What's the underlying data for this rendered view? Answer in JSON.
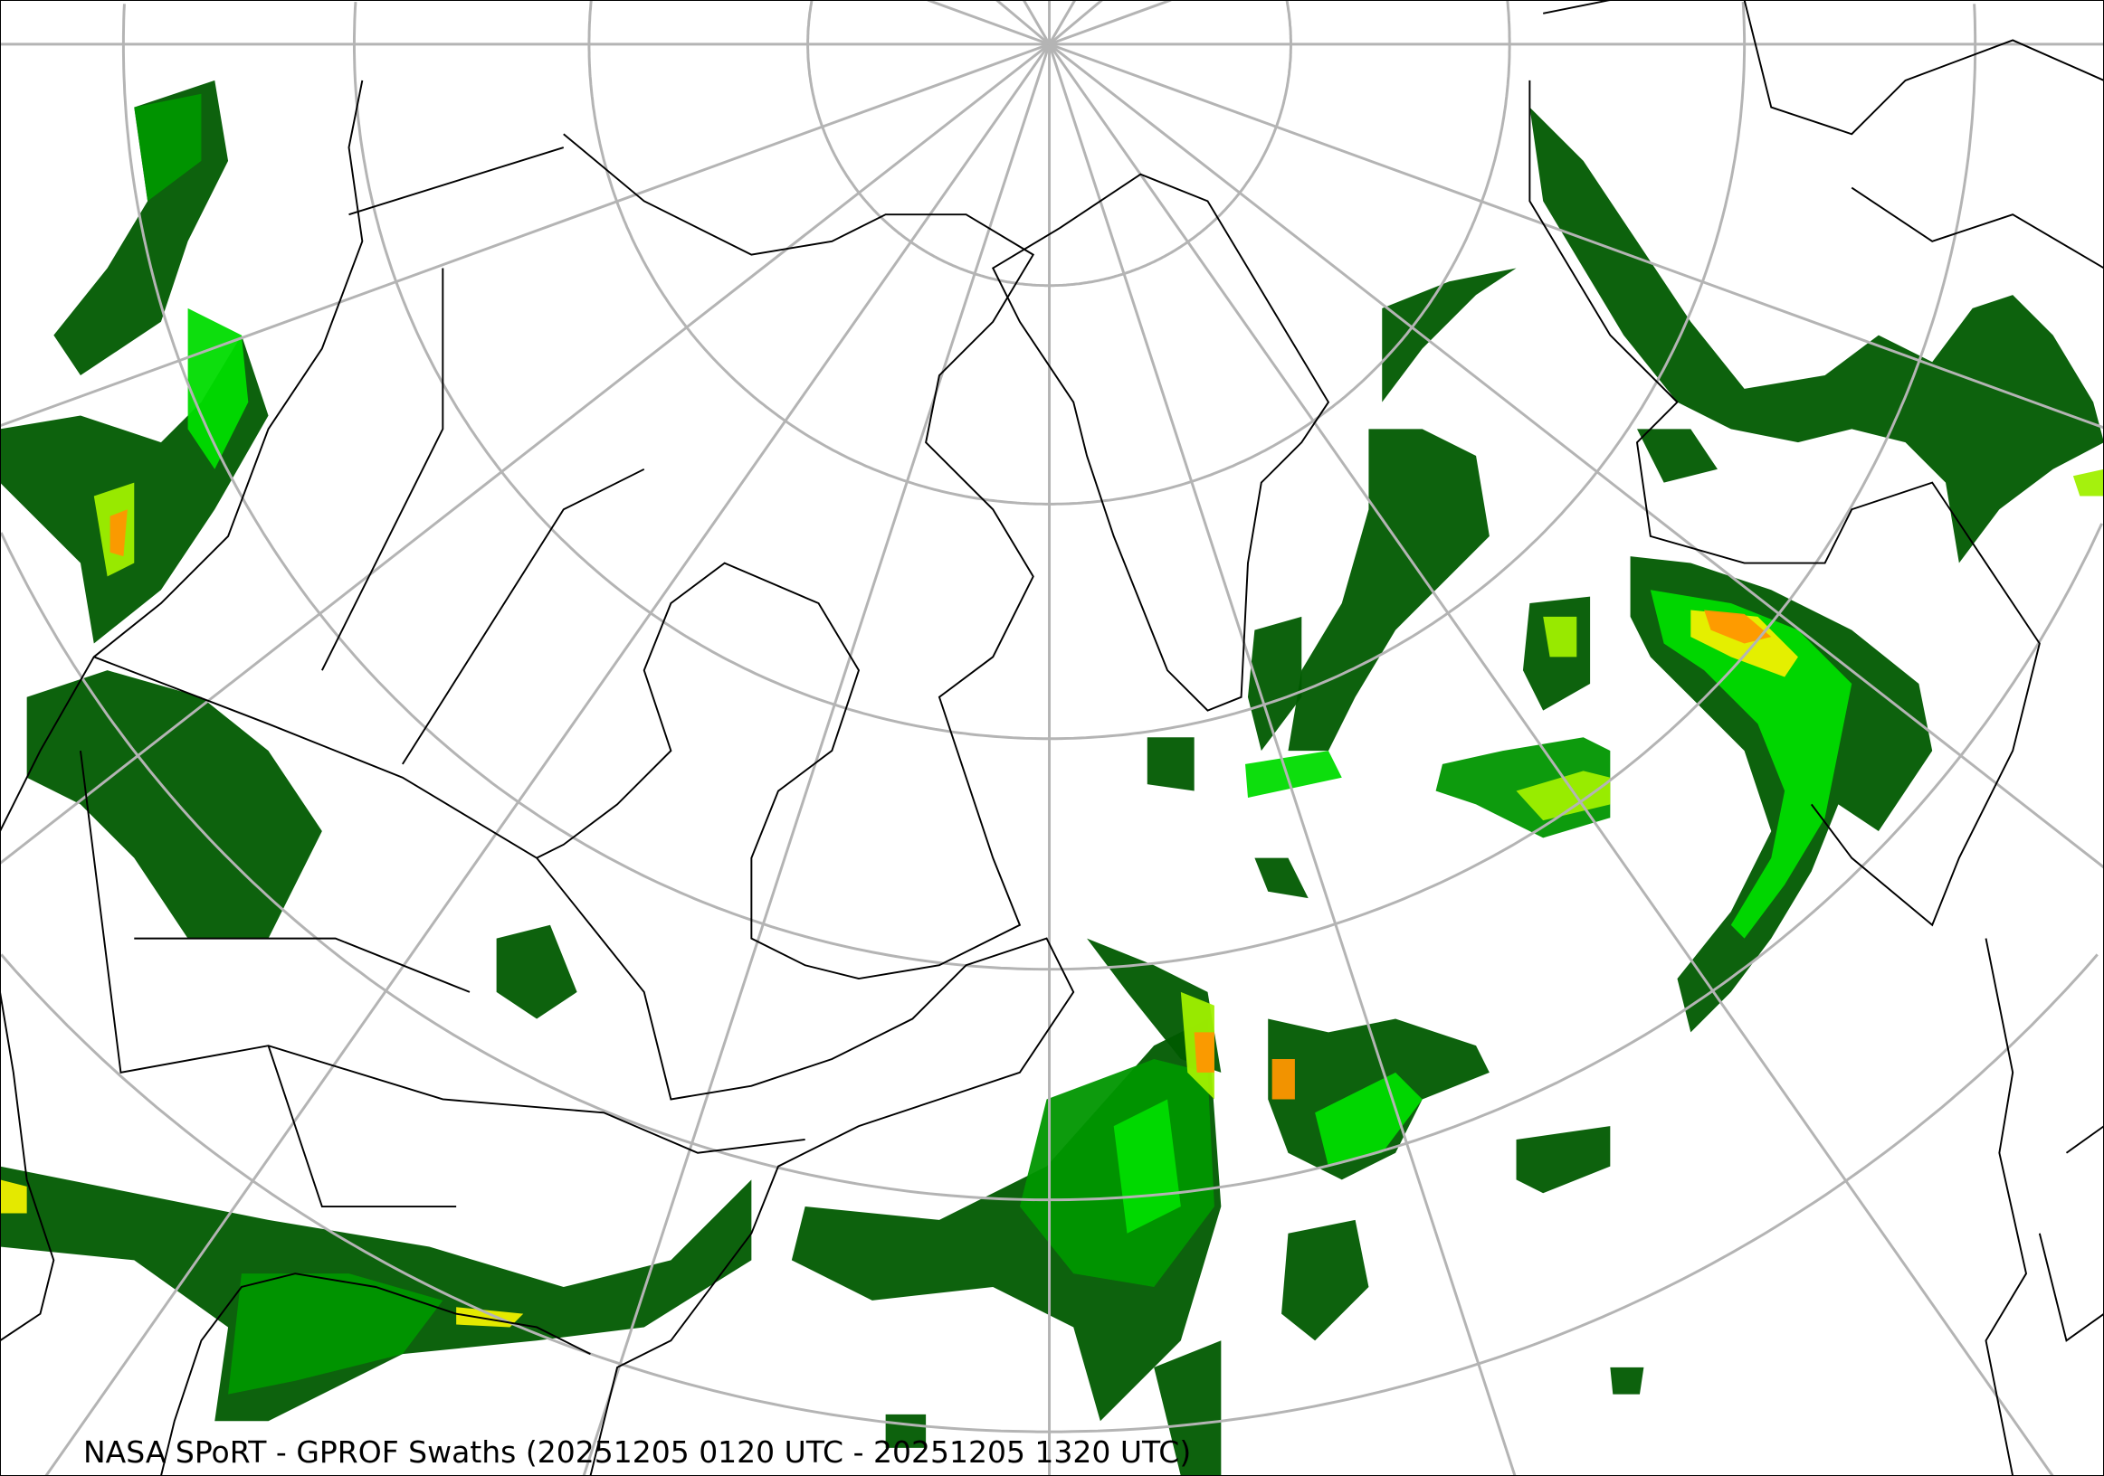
{
  "title": "NASA SPoRT - GPROF Swaths (20251205 0120 UTC - 20251205 1320 UTC)",
  "map": {
    "projection": "polar-stereographic",
    "graticule_color": "#b4b4b4",
    "boundary_color": "#000000",
    "precip_colors": [
      "#005a00",
      "#009600",
      "#00dc00",
      "#a0f000",
      "#f0f000",
      "#ff9600"
    ]
  }
}
